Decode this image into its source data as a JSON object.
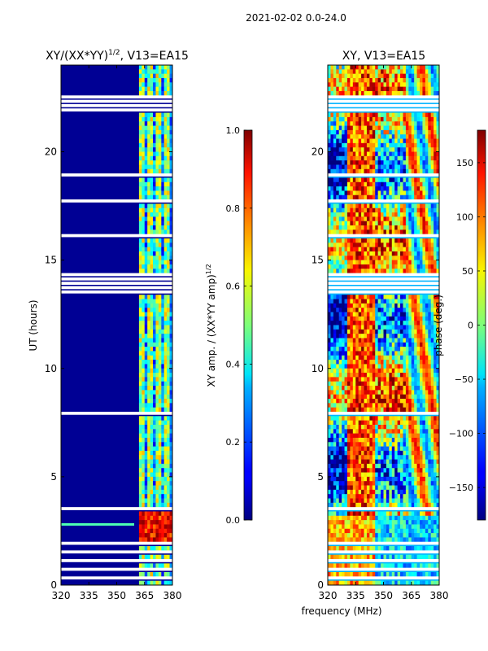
{
  "figure": {
    "suptitle": "2021-02-02 0.0-24.0",
    "xlabel": "frequency (MHz)"
  },
  "chart_data": [
    {
      "type": "heatmap",
      "title_main": "XY/(XX*YY)",
      "title_exp": "1/2",
      "title_tail": ", V13=EA15",
      "xlabel": "",
      "ylabel": "UT (hours)",
      "xlim": [
        320,
        380
      ],
      "ylim": [
        0,
        24
      ],
      "xticks": [
        "320",
        "335",
        "350",
        "365",
        "380"
      ],
      "yticks": [
        "0",
        "5",
        "10",
        "15",
        "20"
      ],
      "colorbar": {
        "label_main": "XY amp. / (XX*YY amp)",
        "label_exp": "1/2",
        "range": [
          0.0,
          1.0
        ],
        "ticks": [
          "0.0",
          "0.2",
          "0.4",
          "0.6",
          "0.8",
          "1.0"
        ],
        "colormap": "jet"
      },
      "notes": "amplitude near 0 (dark blue) below ~362 MHz; bright channels ~362-380 MHz; strong red band near 2-3.5 h"
    },
    {
      "type": "heatmap",
      "title_main": "XY, V13=EA15",
      "xlabel": "",
      "ylabel": "",
      "xlim": [
        320,
        380
      ],
      "ylim": [
        0,
        24
      ],
      "xticks": [
        "320",
        "335",
        "350",
        "365",
        "380"
      ],
      "yticks": [
        "0",
        "5",
        "10",
        "15",
        "20"
      ],
      "colorbar": {
        "label": "phase (deg.)",
        "range": [
          -180,
          180
        ],
        "ticks": [
          "−150",
          "−100",
          "−50",
          "0",
          "50",
          "100",
          "150"
        ],
        "colormap": "jet"
      },
      "notes": "phase varies across the full range with time-dependent structure"
    }
  ]
}
